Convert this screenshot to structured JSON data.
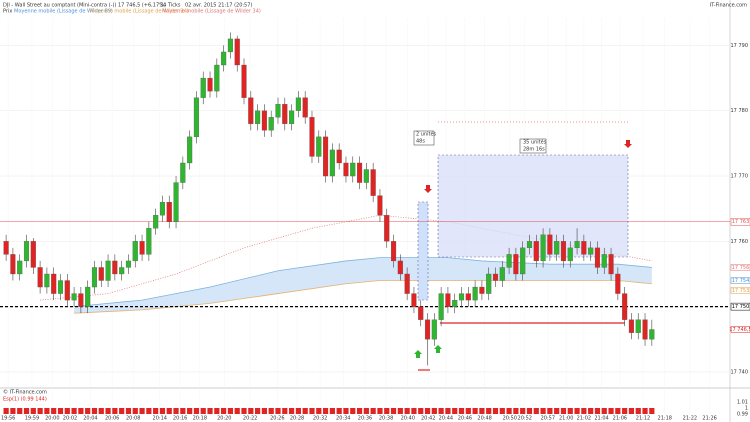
{
  "chart_data": {
    "type": "candlestick",
    "title": "DJI - Wall Street au comptant (Mini-contra (-))",
    "quote": "17 746,5 (+6,17%)",
    "ticks_info": "34 Ticks",
    "date": "02 avr. 2015 21:17 (20:57)",
    "brand": "IT-Finance.com",
    "legend": [
      "Prix",
      "Moyenne mobile (Lissage de Wilder 89)",
      "Moyenne mobile (Lissage de Wilder 34)",
      "Moyenne mobile (Lissage de Wilder 34)"
    ],
    "source": "© IT-Finance.com",
    "indicator": "Esp(1) (0.99 144)",
    "up_color": "#2fb52f",
    "down_color": "#e02424",
    "xlim": [
      -0.9,
      106.5
    ],
    "ylim": [
      17738,
      17794.2
    ],
    "yticks": [
      {
        "value": 17740,
        "label": "17 740"
      },
      {
        "value": 17750,
        "label": "17 750"
      },
      {
        "value": 17760,
        "label": "17 760"
      },
      {
        "value": 17770,
        "label": "17 770"
      },
      {
        "value": 17780,
        "label": "17 780"
      },
      {
        "value": 17790,
        "label": "17 790"
      }
    ],
    "xticks": [
      {
        "value": 0.3,
        "label": "19:56"
      },
      {
        "value": 3.8,
        "label": "19:59"
      },
      {
        "value": 6.8,
        "label": "20:00"
      },
      {
        "value": 9.4,
        "label": "20:02"
      },
      {
        "value": 12.4,
        "label": "20:04"
      },
      {
        "value": 15.6,
        "label": "20:06"
      },
      {
        "value": 18.7,
        "label": "20:08"
      },
      {
        "value": 22.6,
        "label": "20:14"
      },
      {
        "value": 25.6,
        "label": "20:16"
      },
      {
        "value": 28.5,
        "label": "20:18"
      },
      {
        "value": 32.1,
        "label": "20:20"
      },
      {
        "value": 35.9,
        "label": "20:22"
      },
      {
        "value": 39.9,
        "label": "20:26"
      },
      {
        "value": 42.8,
        "label": "20:28"
      },
      {
        "value": 46.2,
        "label": "20:32"
      },
      {
        "value": 49.6,
        "label": "20:34"
      },
      {
        "value": 52.8,
        "label": "20:36"
      },
      {
        "value": 55.9,
        "label": "20:38"
      },
      {
        "value": 59.1,
        "label": "20:40"
      },
      {
        "value": 62.1,
        "label": "20:42"
      },
      {
        "value": 64.7,
        "label": "20:44"
      },
      {
        "value": 67.5,
        "label": "20:46"
      },
      {
        "value": 70.4,
        "label": "20:48"
      },
      {
        "value": 74.1,
        "label": "20:50"
      },
      {
        "value": 76.3,
        "label": "20:52"
      },
      {
        "value": 79.7,
        "label": "20:57"
      },
      {
        "value": 82.4,
        "label": "21:00"
      },
      {
        "value": 85,
        "label": "21:02"
      },
      {
        "value": 87.6,
        "label": "21:04"
      },
      {
        "value": 90.3,
        "label": "21:06"
      },
      {
        "value": 93.7,
        "label": "21:12"
      },
      {
        "value": 96.9,
        "label": "21:18"
      },
      {
        "value": 100.6,
        "label": "21:22"
      },
      {
        "value": 103.5,
        "label": "21:26"
      }
    ],
    "ohlc": [
      [
        17760,
        17761,
        17757,
        17758
      ],
      [
        17758,
        17759,
        17754,
        17755
      ],
      [
        17755,
        17758,
        17754,
        17757
      ],
      [
        17757,
        17761,
        17756,
        17760
      ],
      [
        17760,
        17760.5,
        17755,
        17756
      ],
      [
        17756,
        17757,
        17752,
        17753
      ],
      [
        17753,
        17756,
        17752,
        17755
      ],
      [
        17755,
        17756,
        17751,
        17752
      ],
      [
        17752,
        17755,
        17751,
        17754
      ],
      [
        17754,
        17755,
        17750,
        17751
      ],
      [
        17751,
        17753,
        17750,
        17752
      ],
      [
        17752,
        17753,
        17749,
        17750
      ],
      [
        17750,
        17754,
        17749,
        17753
      ],
      [
        17753,
        17757,
        17752,
        17756
      ],
      [
        17756,
        17757,
        17753,
        17754
      ],
      [
        17754,
        17758,
        17753,
        17757
      ],
      [
        17757,
        17758,
        17754,
        17755
      ],
      [
        17755,
        17757,
        17754,
        17756
      ],
      [
        17756,
        17758,
        17755,
        17757
      ],
      [
        17757,
        17761,
        17756,
        17760
      ],
      [
        17760,
        17761,
        17757,
        17758
      ],
      [
        17758,
        17763,
        17757,
        17762
      ],
      [
        17762,
        17765,
        17761,
        17764
      ],
      [
        17764,
        17767,
        17763,
        17766
      ],
      [
        17766,
        17767,
        17762,
        17763
      ],
      [
        17763,
        17770,
        17762,
        17769
      ],
      [
        17769,
        17773,
        17768,
        17772
      ],
      [
        17772,
        17777,
        17771,
        17776
      ],
      [
        17776,
        17783,
        17775,
        17782
      ],
      [
        17782,
        17786,
        17781,
        17785
      ],
      [
        17785,
        17786,
        17782,
        17783
      ],
      [
        17783,
        17788,
        17782,
        17787
      ],
      [
        17787,
        17790,
        17786,
        17789
      ],
      [
        17789,
        17792,
        17788,
        17791
      ],
      [
        17791,
        17791.5,
        17786,
        17787
      ],
      [
        17787,
        17788,
        17781,
        17782
      ],
      [
        17782,
        17783,
        17777,
        17778
      ],
      [
        17778,
        17781,
        17777,
        17780
      ],
      [
        17780,
        17781,
        17776,
        17777
      ],
      [
        17777,
        17780,
        17776,
        17779
      ],
      [
        17779,
        17782,
        17778,
        17781
      ],
      [
        17781,
        17782,
        17777,
        17778
      ],
      [
        17778,
        17781,
        17777,
        17780
      ],
      [
        17780,
        17783,
        17779,
        17782
      ],
      [
        17782,
        17783,
        17778,
        17779
      ],
      [
        17779,
        17780,
        17772,
        17773
      ],
      [
        17773,
        17777,
        17772,
        17776
      ],
      [
        17776,
        17777,
        17769,
        17770
      ],
      [
        17770,
        17775,
        17769,
        17774
      ],
      [
        17774,
        17775,
        17771,
        17772
      ],
      [
        17772,
        17773,
        17769,
        17770
      ],
      [
        17770,
        17773,
        17769,
        17772
      ],
      [
        17772,
        17773,
        17768,
        17769
      ],
      [
        17769,
        17772,
        17768,
        17771
      ],
      [
        17771,
        17772,
        17766,
        17767
      ],
      [
        17767,
        17768,
        17763,
        17764
      ],
      [
        17764,
        17765,
        17759,
        17760
      ],
      [
        17760,
        17761,
        17756,
        17757
      ],
      [
        17757,
        17758,
        17754,
        17755
      ],
      [
        17755,
        17756,
        17751,
        17752
      ],
      [
        17752,
        17753,
        17749,
        17750
      ],
      [
        17750,
        17751,
        17747,
        17748
      ],
      [
        17748,
        17749,
        17741,
        17745
      ],
      [
        17745,
        17749,
        17744,
        17748
      ],
      [
        17748,
        17753,
        17747,
        17752
      ],
      [
        17752,
        17753,
        17749,
        17750
      ],
      [
        17750,
        17752,
        17749,
        17751
      ],
      [
        17751,
        17753,
        17750,
        17752
      ],
      [
        17752,
        17753,
        17750,
        17751
      ],
      [
        17751,
        17754,
        17750,
        17753
      ],
      [
        17753,
        17754,
        17751,
        17752
      ],
      [
        17752,
        17756,
        17751,
        17755
      ],
      [
        17755,
        17756,
        17753,
        17754
      ],
      [
        17754,
        17757,
        17753,
        17756
      ],
      [
        17756,
        17759,
        17755,
        17758
      ],
      [
        17758,
        17759,
        17754,
        17755
      ],
      [
        17755,
        17760,
        17754,
        17759
      ],
      [
        17759,
        17761,
        17758,
        17760
      ],
      [
        17760,
        17761,
        17756,
        17757
      ],
      [
        17757,
        17762,
        17756,
        17761
      ],
      [
        17761,
        17762,
        17757,
        17758
      ],
      [
        17758,
        17761,
        17757,
        17760
      ],
      [
        17760,
        17761,
        17756,
        17757
      ],
      [
        17757,
        17760,
        17756,
        17759
      ],
      [
        17759,
        17762,
        17758,
        17760
      ],
      [
        17760,
        17761,
        17757,
        17758
      ],
      [
        17758,
        17760,
        17757,
        17759
      ],
      [
        17759,
        17760,
        17755,
        17756
      ],
      [
        17756,
        17759,
        17755,
        17758
      ],
      [
        17758,
        17759,
        17754,
        17755
      ],
      [
        17755,
        17756,
        17751,
        17752
      ],
      [
        17752,
        17753,
        17747,
        17748
      ],
      [
        17748,
        17749,
        17745,
        17746
      ],
      [
        17746,
        17749,
        17745,
        17748
      ],
      [
        17748,
        17749,
        17744,
        17745
      ],
      [
        17745,
        17748,
        17744,
        17746.5
      ]
    ],
    "band": {
      "x": [
        10,
        20,
        30,
        40,
        50,
        55,
        60,
        65,
        70,
        80,
        90,
        95
      ],
      "upper": [
        17750,
        17751,
        17753,
        17755.5,
        17757,
        17757.5,
        17757.5,
        17757.5,
        17757,
        17756.5,
        17756.5,
        17756
      ],
      "lower": [
        17749,
        17749.5,
        17750.5,
        17752,
        17753.5,
        17754,
        17754,
        17754,
        17754,
        17754,
        17754,
        17753.5
      ],
      "fill": "#d4e6f8",
      "upper_color": "#7eb2e0",
      "lower_color": "#e8b070"
    },
    "ma_dotted": {
      "x": [
        5,
        15,
        25,
        35,
        45,
        55,
        65,
        75,
        85,
        95
      ],
      "values": [
        17751,
        17752,
        17755,
        17759,
        17762,
        17764,
        17763,
        17761,
        17759,
        17757
      ],
      "color": "#e07070"
    },
    "levels": [
      {
        "value": 17763,
        "label": "17 763",
        "color": "#e05050",
        "style": "solid"
      },
      {
        "value": 17750,
        "label": "17 750",
        "color": "#000000",
        "style": "dashed"
      }
    ],
    "marks": [
      {
        "value": 17756,
        "label": "17 756",
        "color": "#e07070"
      },
      {
        "value": 17754,
        "label": "17 754",
        "color": "#4a90d9"
      },
      {
        "value": 17752.5,
        "label": "17 753",
        "color": "#e0a040"
      },
      {
        "value": 17746.5,
        "label": "17 746,5",
        "color": "#e02424"
      }
    ],
    "annotations": [
      {
        "lines": [
          "2 unités",
          "48s"
        ]
      },
      {
        "lines": [
          "35 unités",
          "28m 16s"
        ]
      }
    ],
    "volume": {
      "values": [
        1,
        1,
        1,
        1,
        1,
        1,
        1,
        1,
        1,
        1,
        1,
        1,
        1,
        1,
        1,
        1,
        1,
        1,
        1,
        1,
        1,
        1,
        1,
        1,
        1,
        1,
        1,
        1,
        1,
        1,
        1,
        1,
        1,
        1,
        1,
        1,
        1,
        1,
        1,
        1,
        1,
        1,
        1,
        1,
        1,
        1,
        1,
        1,
        1,
        1,
        1,
        1,
        1,
        1,
        1,
        1,
        1,
        1,
        1,
        1,
        1,
        1,
        1,
        1,
        1,
        1,
        1,
        1,
        1,
        1,
        1,
        1,
        1,
        1,
        1,
        1,
        1,
        1,
        1,
        1,
        1,
        1,
        1,
        1,
        1,
        1,
        1,
        1,
        1,
        1,
        1,
        1,
        1,
        1,
        1,
        1
      ],
      "ylim": [
        0.99,
        1.01
      ],
      "yticks": [
        0.99,
        1,
        1.01
      ],
      "color": "#e02424"
    }
  }
}
